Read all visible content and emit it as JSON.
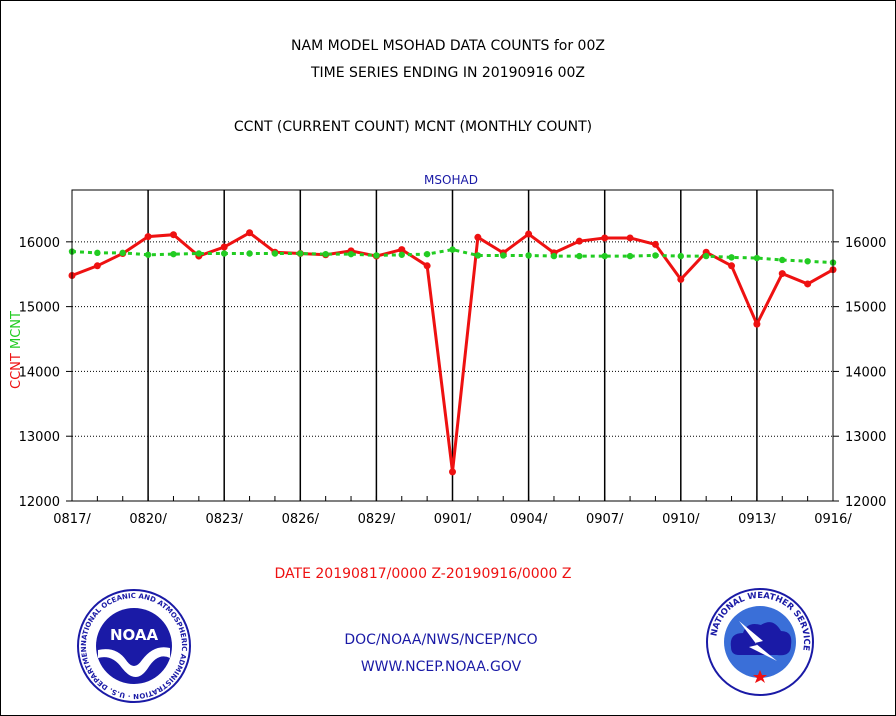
{
  "header": {
    "title_line1": "NAM MODEL MSOHAD DATA COUNTS for 00Z",
    "title_line2": "TIME SERIES ENDING IN 20190916 00Z",
    "subtitle": "CCNT (CURRENT COUNT) MCNT (MONTHLY COUNT)"
  },
  "footer": {
    "date_range": "DATE 20190817/0000 Z-20190916/0000 Z",
    "org": "DOC/NOAA/NWS/NCEP/NCO",
    "url": "WWW.NCEP.NOAA.GOV"
  },
  "logos": {
    "noaa": {
      "text": "NOAA",
      "ring_text": "NATIONAL OCEANIC AND ATMOSPHERIC ADMINISTRATION · U.S. DEPARTMENT OF COMMERCE"
    },
    "nws": {
      "ring_text": "NATIONAL WEATHER SERVICE"
    }
  },
  "colors": {
    "ccnt": "#ee1111",
    "mcnt": "#22cc22",
    "text_blue": "#1a1aa6",
    "grid": "#000000"
  },
  "chart_data": {
    "type": "line",
    "title": "MSOHAD",
    "ylabel_ccnt": "CCNT",
    "ylabel_mcnt": "MCNT",
    "ylim": [
      12000,
      16800
    ],
    "yticks": [
      12000,
      13000,
      14000,
      15000,
      16000
    ],
    "xlim": [
      0,
      30
    ],
    "xtick_labels": [
      {
        "pos": 0,
        "label": "0817/"
      },
      {
        "pos": 3,
        "label": "0820/"
      },
      {
        "pos": 6,
        "label": "0823/"
      },
      {
        "pos": 9,
        "label": "0826/"
      },
      {
        "pos": 12,
        "label": "0829/"
      },
      {
        "pos": 15,
        "label": "0901/"
      },
      {
        "pos": 18,
        "label": "0904/"
      },
      {
        "pos": 21,
        "label": "0907/"
      },
      {
        "pos": 24,
        "label": "0910/"
      },
      {
        "pos": 27,
        "label": "0913/"
      },
      {
        "pos": 30,
        "label": "0916/"
      }
    ],
    "series": [
      {
        "name": "CCNT",
        "style": "solid",
        "values": [
          15480,
          15630,
          15820,
          16080,
          16110,
          15780,
          15920,
          16140,
          15840,
          15820,
          15800,
          15860,
          15780,
          15880,
          15630,
          12450,
          16070,
          15830,
          16120,
          15830,
          16010,
          16060,
          16060,
          15960,
          15420,
          15840,
          15630,
          14730,
          15510,
          15350,
          15570
        ]
      },
      {
        "name": "MCNT",
        "style": "dotted",
        "values": [
          15850,
          15830,
          15830,
          15800,
          15810,
          15820,
          15820,
          15820,
          15820,
          15820,
          15810,
          15810,
          15790,
          15800,
          15810,
          15880,
          15790,
          15790,
          15790,
          15780,
          15780,
          15780,
          15780,
          15790,
          15780,
          15780,
          15760,
          15750,
          15720,
          15700,
          15680
        ]
      }
    ]
  }
}
